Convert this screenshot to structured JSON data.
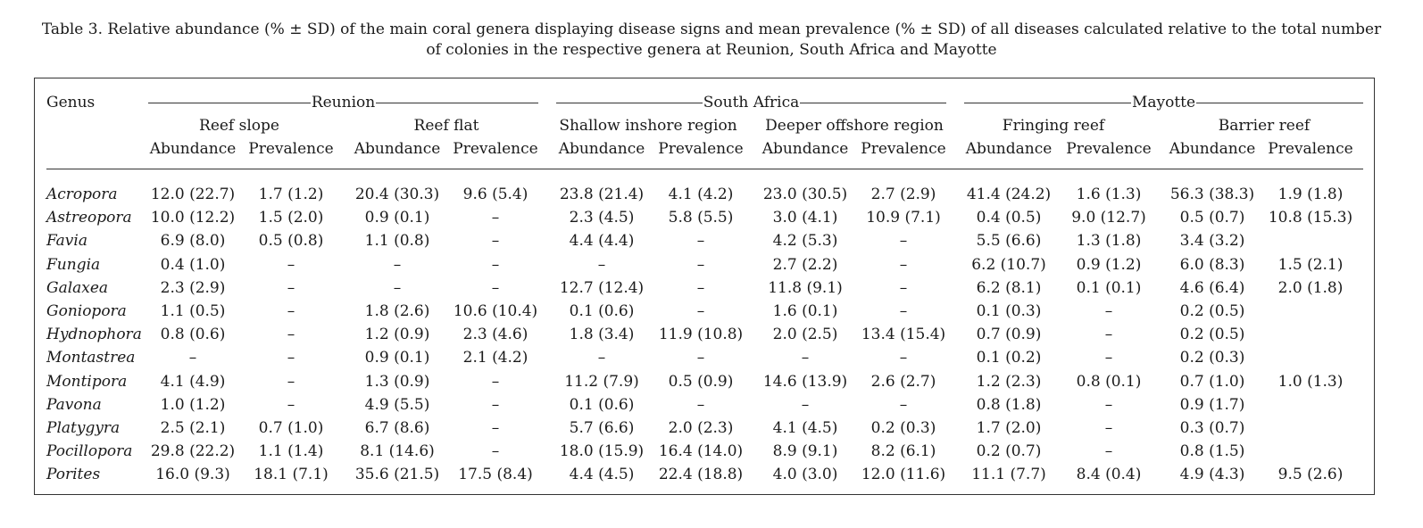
{
  "caption": {
    "line1": "Table 3. Relative abundance (% ± SD) of the main coral genera displaying disease signs and mean prevalence (% ± SD) of all diseases calculated relative to the total number",
    "line2": "of colonies in the respective genera at Reunion, South Africa and Mayotte"
  },
  "header": {
    "genus": "Genus",
    "locations": [
      "Reunion",
      "South Africa",
      "Mayotte"
    ],
    "habitats": [
      "Reef slope",
      "Reef flat",
      "Shallow inshore region",
      "Deeper offshore region",
      "Fringing reef",
      "Barrier reef"
    ],
    "measures": [
      "Abundance",
      "Prevalence",
      "Abundance",
      "Prevalence",
      "Abundance",
      "Prevalence",
      "Abundance",
      "Prevalence",
      "Abundance",
      "Prevalence",
      "Abundance",
      "Prevalence"
    ]
  },
  "rows": [
    {
      "genus": "Acropora",
      "cells": [
        "12.0 (22.7)",
        "1.7 (1.2)",
        "20.4 (30.3)",
        "9.6 (5.4)",
        "23.8 (21.4)",
        "4.1 (4.2)",
        "23.0 (30.5)",
        "2.7 (2.9)",
        "41.4 (24.2)",
        "1.6 (1.3)",
        "56.3 (38.3)",
        "1.9 (1.8)"
      ]
    },
    {
      "genus": "Astreopora",
      "cells": [
        "10.0 (12.2)",
        "1.5 (2.0)",
        "0.9 (0.1)",
        "–",
        "2.3 (4.5)",
        "5.8 (5.5)",
        "3.0 (4.1)",
        "10.9 (7.1)",
        "0.4 (0.5)",
        "9.0 (12.7)",
        "0.5 (0.7)",
        "10.8 (15.3)"
      ]
    },
    {
      "genus": "Favia",
      "cells": [
        "6.9 (8.0)",
        "0.5 (0.8)",
        "1.1 (0.8)",
        "–",
        "4.4 (4.4)",
        "–",
        "4.2 (5.3)",
        "–",
        "5.5 (6.6)",
        "1.3 (1.8)",
        "3.4 (3.2)",
        ""
      ]
    },
    {
      "genus": "Fungia",
      "cells": [
        "0.4 (1.0)",
        "–",
        "–",
        "–",
        "–",
        "–",
        "2.7 (2.2)",
        "–",
        "6.2 (10.7)",
        "0.9 (1.2)",
        "6.0 (8.3)",
        "1.5 (2.1)"
      ]
    },
    {
      "genus": "Galaxea",
      "cells": [
        "2.3 (2.9)",
        "–",
        "–",
        "–",
        "12.7 (12.4)",
        "–",
        "11.8 (9.1)",
        "–",
        "6.2 (8.1)",
        "0.1 (0.1)",
        "4.6 (6.4)",
        "2.0 (1.8)"
      ]
    },
    {
      "genus": "Goniopora",
      "cells": [
        "1.1 (0.5)",
        "–",
        "1.8 (2.6)",
        "10.6 (10.4)",
        "0.1 (0.6)",
        "–",
        "1.6 (0.1)",
        "–",
        "0.1 (0.3)",
        "–",
        "0.2 (0.5)",
        ""
      ]
    },
    {
      "genus": "Hydnophora",
      "cells": [
        "0.8 (0.6)",
        "–",
        "1.2 (0.9)",
        "2.3 (4.6)",
        "1.8 (3.4)",
        "11.9 (10.8)",
        "2.0 (2.5)",
        "13.4 (15.4)",
        "0.7 (0.9)",
        "–",
        "0.2 (0.5)",
        ""
      ]
    },
    {
      "genus": "Montastrea",
      "cells": [
        "–",
        "–",
        "0.9 (0.1)",
        "2.1 (4.2)",
        "–",
        "–",
        "–",
        "–",
        "0.1 (0.2)",
        "–",
        "0.2 (0.3)",
        ""
      ]
    },
    {
      "genus": "Montipora",
      "cells": [
        "4.1 (4.9)",
        "–",
        "1.3 (0.9)",
        "–",
        "11.2 (7.9)",
        "0.5 (0.9)",
        "14.6 (13.9)",
        "2.6 (2.7)",
        "1.2 (2.3)",
        "0.8 (0.1)",
        "0.7 (1.0)",
        "1.0 (1.3)"
      ]
    },
    {
      "genus": "Pavona",
      "cells": [
        "1.0 (1.2)",
        "–",
        "4.9 (5.5)",
        "–",
        "0.1 (0.6)",
        "–",
        "–",
        "–",
        "0.8 (1.8)",
        "–",
        "0.9 (1.7)",
        ""
      ]
    },
    {
      "genus": "Platygyra",
      "cells": [
        "2.5 (2.1)",
        "0.7 (1.0)",
        "6.7 (8.6)",
        "–",
        "5.7 (6.6)",
        "2.0 (2.3)",
        "4.1 (4.5)",
        "0.2 (0.3)",
        "1.7 (2.0)",
        "–",
        "0.3 (0.7)",
        ""
      ]
    },
    {
      "genus": "Pocillopora",
      "cells": [
        "29.8 (22.2)",
        "1.1 (1.4)",
        "8.1 (14.6)",
        "–",
        "18.0 (15.9)",
        "16.4 (14.0)",
        "8.9 (9.1)",
        "8.2 (6.1)",
        "0.2 (0.7)",
        "–",
        "0.8 (1.5)",
        ""
      ]
    },
    {
      "genus": "Porites",
      "cells": [
        "16.0 (9.3)",
        "18.1 (7.1)",
        "35.6 (21.5)",
        "17.5 (8.4)",
        "4.4 (4.5)",
        "22.4 (18.8)",
        "4.0 (3.0)",
        "12.0 (11.6)",
        "11.1 (7.7)",
        "8.4 (0.4)",
        "4.9 (4.3)",
        "9.5 (2.6)"
      ]
    }
  ]
}
